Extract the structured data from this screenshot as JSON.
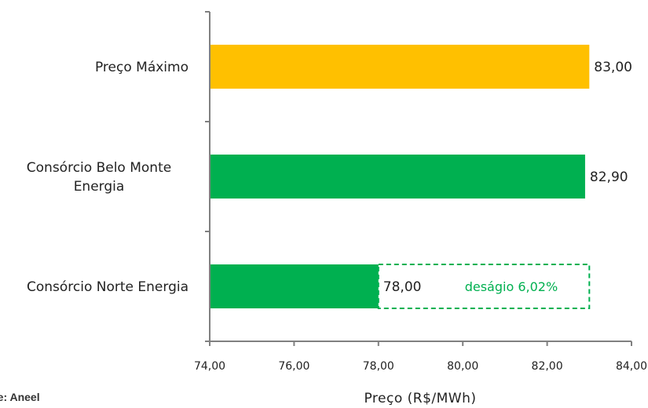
{
  "chart_data": {
    "type": "bar",
    "orientation": "horizontal",
    "categories": [
      [
        "Preço Máximo"
      ],
      [
        "Consórcio Belo Monte",
        "Energia"
      ],
      [
        "Consórcio Norte Energia"
      ]
    ],
    "values": [
      83.0,
      82.9,
      78.0
    ],
    "value_labels": [
      "83,00",
      "82,90",
      "78,00"
    ],
    "bar_colors": [
      "#FFC000",
      "#00B050",
      "#00B050"
    ],
    "xlabel": "Preço (R$/MWh)",
    "xlim": [
      74,
      84
    ],
    "x_ticks": [
      74,
      76,
      78,
      80,
      82,
      84
    ],
    "x_tick_labels": [
      "74,00",
      "76,00",
      "78,00",
      "80,00",
      "82,00",
      "84,00"
    ],
    "annotation": {
      "text": "deságio 6,02%",
      "from": 78.0,
      "to": 83.0,
      "color": "#00B050",
      "style": "dashed"
    },
    "grid": false,
    "legend": "none"
  },
  "source_text": "te: Aneel"
}
